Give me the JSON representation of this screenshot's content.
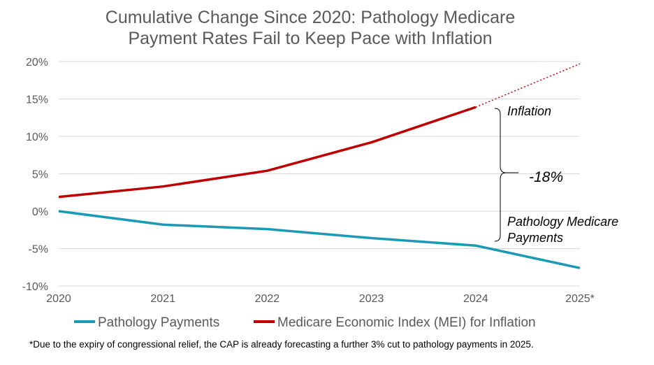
{
  "chart_data": {
    "type": "line",
    "title_lines": [
      "Cumulative Change Since 2020: Pathology Medicare",
      "Payment Rates Fail to Keep Pace with Inflation"
    ],
    "categories": [
      "2020",
      "2021",
      "2022",
      "2023",
      "2024",
      "2025*"
    ],
    "ylim": [
      -10,
      20
    ],
    "yticks": [
      -10,
      -5,
      0,
      5,
      10,
      15,
      20
    ],
    "ytick_labels": [
      "-10%",
      "-5%",
      "0%",
      "5%",
      "10%",
      "15%",
      "20%"
    ],
    "grid": true,
    "legend_placement": "bottom",
    "series": [
      {
        "name": "Pathology Payments",
        "color": "#1b9ab5",
        "values": [
          0,
          -1.8,
          -2.4,
          -3.6,
          -4.6,
          -7.6
        ]
      },
      {
        "name": "Medicare Economic Index (MEI) for Inflation",
        "color": "#c00000",
        "values": [
          1.9,
          3.3,
          5.4,
          9.2,
          13.9,
          null
        ],
        "projected": [
          null,
          null,
          null,
          null,
          13.9,
          19.7
        ]
      }
    ],
    "annotations": {
      "inflation": "Inflation",
      "gap": "-18%",
      "pathology_line1": "Pathology Medicare",
      "pathology_line2": "Payments"
    },
    "footnote": "*Due to the expiry of congressional relief, the CAP is already forecasting a further 3% cut to pathology payments in 2025."
  }
}
